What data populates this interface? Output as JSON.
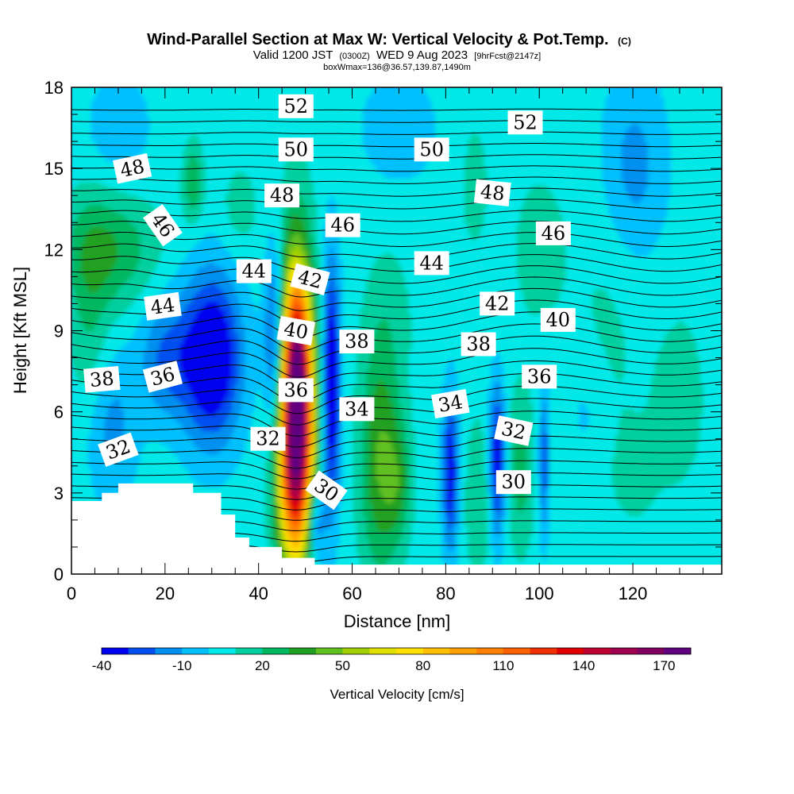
{
  "title": "Wind-Parallel Section at Max W: Vertical Velocity & Pot.Temp.",
  "copyright_mark": "(C)",
  "subtitle_main": "Valid 1200 JST",
  "subtitle_utc": "(0300Z)",
  "subtitle_date": "WED 9 Aug 2023",
  "subtitle_fcst": "[9hrFcst@2147z]",
  "box_info": "boxWmax=136@36.57,139.87,1490m",
  "colors": {
    "background_fill": "#00d0ff",
    "terrain": "#ffffff",
    "contour": "#000000"
  },
  "chart_data": {
    "type": "heatmap",
    "xlabel": "Distance [nm]",
    "ylabel": "Height [Kft MSL]",
    "xlim": [
      0,
      139
    ],
    "ylim": [
      0,
      18
    ],
    "x_ticks": [
      "0",
      "20",
      "40",
      "60",
      "80",
      "100",
      "120"
    ],
    "x_tick_values": [
      0,
      20,
      40,
      60,
      80,
      100,
      120
    ],
    "y_ticks": [
      "0",
      "3",
      "6",
      "9",
      "12",
      "15",
      "18"
    ],
    "y_tick_values": [
      0,
      3,
      6,
      9,
      12,
      15,
      18
    ],
    "colorbar": {
      "label": "Vertical Velocity [cm/s]",
      "tick_labels": [
        "-40",
        "-10",
        "20",
        "50",
        "80",
        "110",
        "140",
        "170"
      ],
      "tick_values": [
        -40,
        -10,
        20,
        50,
        80,
        110,
        140,
        170
      ],
      "levels": [
        -40,
        -30,
        -20,
        -10,
        0,
        10,
        20,
        30,
        40,
        50,
        60,
        70,
        80,
        90,
        100,
        110,
        120,
        130,
        140,
        150,
        160,
        170,
        180
      ],
      "colors": [
        "#0000f0",
        "#0050f0",
        "#0090f0",
        "#00c0ff",
        "#00e8e8",
        "#00d0a0",
        "#00b860",
        "#20a020",
        "#60c020",
        "#a0d000",
        "#e0e000",
        "#ffe000",
        "#ffc000",
        "#ffa000",
        "#ff8000",
        "#ff6000",
        "#f03000",
        "#e00000",
        "#c00030",
        "#a00050",
        "#800060",
        "#600080"
      ]
    },
    "terrain_outline": [
      [
        0,
        2.7
      ],
      [
        6.5,
        2.7
      ],
      [
        6.5,
        3.0
      ],
      [
        10,
        3.0
      ],
      [
        10,
        3.35
      ],
      [
        26,
        3.35
      ],
      [
        26,
        3.0
      ],
      [
        32,
        3.0
      ],
      [
        32,
        2.2
      ],
      [
        35,
        2.2
      ],
      [
        35,
        1.35
      ],
      [
        38,
        1.35
      ],
      [
        38,
        1.0
      ],
      [
        45,
        1.0
      ],
      [
        45,
        0.6
      ],
      [
        52,
        0.6
      ],
      [
        52,
        0.35
      ],
      [
        139,
        0.35
      ]
    ],
    "velocity_features": [
      {
        "x": 48,
        "y": 6.5,
        "sx": 2.6,
        "sy": 3.6,
        "value": 145
      },
      {
        "x": 48.5,
        "y": 8.0,
        "sx": 1.6,
        "sy": 1.8,
        "value": 40
      },
      {
        "x": 48,
        "y": 3.5,
        "sx": 2.8,
        "sy": 2.2,
        "value": 60
      },
      {
        "x": 55.5,
        "y": 7.0,
        "sx": 1.4,
        "sy": 3.2,
        "value": -55
      },
      {
        "x": 43.5,
        "y": 8.5,
        "sx": 1.5,
        "sy": 2.5,
        "value": -45
      },
      {
        "x": 30,
        "y": 8.0,
        "sx": 4.5,
        "sy": 2.2,
        "value": -55
      },
      {
        "x": 20,
        "y": 8.0,
        "sx": 4.0,
        "sy": 1.6,
        "value": -25
      },
      {
        "x": 8,
        "y": 5.5,
        "sx": 4.0,
        "sy": 2.0,
        "value": -20
      },
      {
        "x": 66,
        "y": 4.2,
        "sx": 3.0,
        "sy": 3.0,
        "value": 35
      },
      {
        "x": 70,
        "y": 3.5,
        "sx": 2.0,
        "sy": 1.5,
        "value": 20
      },
      {
        "x": 81,
        "y": 3.8,
        "sx": 1.2,
        "sy": 2.0,
        "value": -45
      },
      {
        "x": 91,
        "y": 4.2,
        "sx": 1.2,
        "sy": 2.0,
        "value": -45
      },
      {
        "x": 101,
        "y": 4.2,
        "sx": 0.8,
        "sy": 2.0,
        "value": -30
      },
      {
        "x": 96,
        "y": 3.8,
        "sx": 2.0,
        "sy": 2.0,
        "value": 20
      },
      {
        "x": 87,
        "y": 2.8,
        "sx": 2.0,
        "sy": 2.0,
        "value": 15
      },
      {
        "x": 52,
        "y": 2.0,
        "sx": 1.5,
        "sy": 1.2,
        "value": -40
      },
      {
        "x": 8,
        "y": 12.0,
        "sx": 7.0,
        "sy": 1.5,
        "value": 25
      },
      {
        "x": 4,
        "y": 9.0,
        "sx": 3.0,
        "sy": 3.0,
        "value": 15
      },
      {
        "x": 26,
        "y": 14.5,
        "sx": 1.5,
        "sy": 1.0,
        "value": 25
      },
      {
        "x": 36,
        "y": 13.5,
        "sx": 3.0,
        "sy": 1.2,
        "value": 10
      },
      {
        "x": 100,
        "y": 12.0,
        "sx": 5.0,
        "sy": 2.5,
        "value": 8
      },
      {
        "x": 115,
        "y": 10.0,
        "sx": 5.0,
        "sy": 4.0,
        "value": 7
      },
      {
        "x": 86,
        "y": 14.5,
        "sx": 3.0,
        "sy": 2.5,
        "value": 7
      },
      {
        "x": 130,
        "y": 6.5,
        "sx": 5.0,
        "sy": 3.0,
        "value": 8
      },
      {
        "x": 68,
        "y": 9.5,
        "sx": 4.0,
        "sy": 2.0,
        "value": 8
      },
      {
        "x": 120,
        "y": 15.0,
        "sx": 5.0,
        "sy": 2.5,
        "value": -20
      },
      {
        "x": 70,
        "y": 16.5,
        "sx": 6.0,
        "sy": 1.5,
        "value": -12
      },
      {
        "x": 10,
        "y": 16.5,
        "sx": 5.0,
        "sy": 1.5,
        "value": -12
      },
      {
        "x": 120,
        "y": 3.5,
        "sx": 4.0,
        "sy": 1.5,
        "value": 6
      },
      {
        "x": 110,
        "y": 6.0,
        "sx": 3.0,
        "sy": 1.5,
        "value": -8
      }
    ],
    "theta_labels": [
      {
        "text": "52",
        "x": 48,
        "y": 17.3,
        "rotate": 0
      },
      {
        "text": "52",
        "x": 97,
        "y": 16.7,
        "rotate": 0
      },
      {
        "text": "50",
        "x": 48,
        "y": 15.7,
        "rotate": 0
      },
      {
        "text": "50",
        "x": 77,
        "y": 15.7,
        "rotate": 0
      },
      {
        "text": "48",
        "x": 13,
        "y": 15.0,
        "rotate": -12
      },
      {
        "text": "48",
        "x": 45,
        "y": 14.0,
        "rotate": 0
      },
      {
        "text": "48",
        "x": 90,
        "y": 14.1,
        "rotate": 6
      },
      {
        "text": "46",
        "x": 19.5,
        "y": 12.9,
        "rotate": 55
      },
      {
        "text": "46",
        "x": 58,
        "y": 12.9,
        "rotate": 0
      },
      {
        "text": "46",
        "x": 103,
        "y": 12.6,
        "rotate": 0
      },
      {
        "text": "44",
        "x": 39,
        "y": 11.2,
        "rotate": 0
      },
      {
        "text": "44",
        "x": 77,
        "y": 11.5,
        "rotate": 0
      },
      {
        "text": "44",
        "x": 19.5,
        "y": 9.9,
        "rotate": -8
      },
      {
        "text": "42",
        "x": 51,
        "y": 10.9,
        "rotate": 15
      },
      {
        "text": "42",
        "x": 91,
        "y": 10.0,
        "rotate": 0
      },
      {
        "text": "40",
        "x": 48,
        "y": 9.0,
        "rotate": 10
      },
      {
        "text": "40",
        "x": 104,
        "y": 9.4,
        "rotate": 0
      },
      {
        "text": "38",
        "x": 61,
        "y": 8.6,
        "rotate": 0
      },
      {
        "text": "38",
        "x": 87,
        "y": 8.5,
        "rotate": 0
      },
      {
        "text": "38",
        "x": 6.5,
        "y": 7.2,
        "rotate": -5
      },
      {
        "text": "36",
        "x": 19.5,
        "y": 7.3,
        "rotate": -15
      },
      {
        "text": "36",
        "x": 48,
        "y": 6.8,
        "rotate": 0
      },
      {
        "text": "36",
        "x": 100,
        "y": 7.3,
        "rotate": 0
      },
      {
        "text": "34",
        "x": 61,
        "y": 6.1,
        "rotate": 0
      },
      {
        "text": "34",
        "x": 81,
        "y": 6.3,
        "rotate": -10
      },
      {
        "text": "32",
        "x": 42,
        "y": 5.0,
        "rotate": 0
      },
      {
        "text": "32",
        "x": 10,
        "y": 4.6,
        "rotate": -20
      },
      {
        "text": "32",
        "x": 94.5,
        "y": 5.3,
        "rotate": 12
      },
      {
        "text": "30",
        "x": 54.5,
        "y": 3.1,
        "rotate": 35
      },
      {
        "text": "30",
        "x": 94.5,
        "y": 3.4,
        "rotate": 0
      }
    ]
  }
}
